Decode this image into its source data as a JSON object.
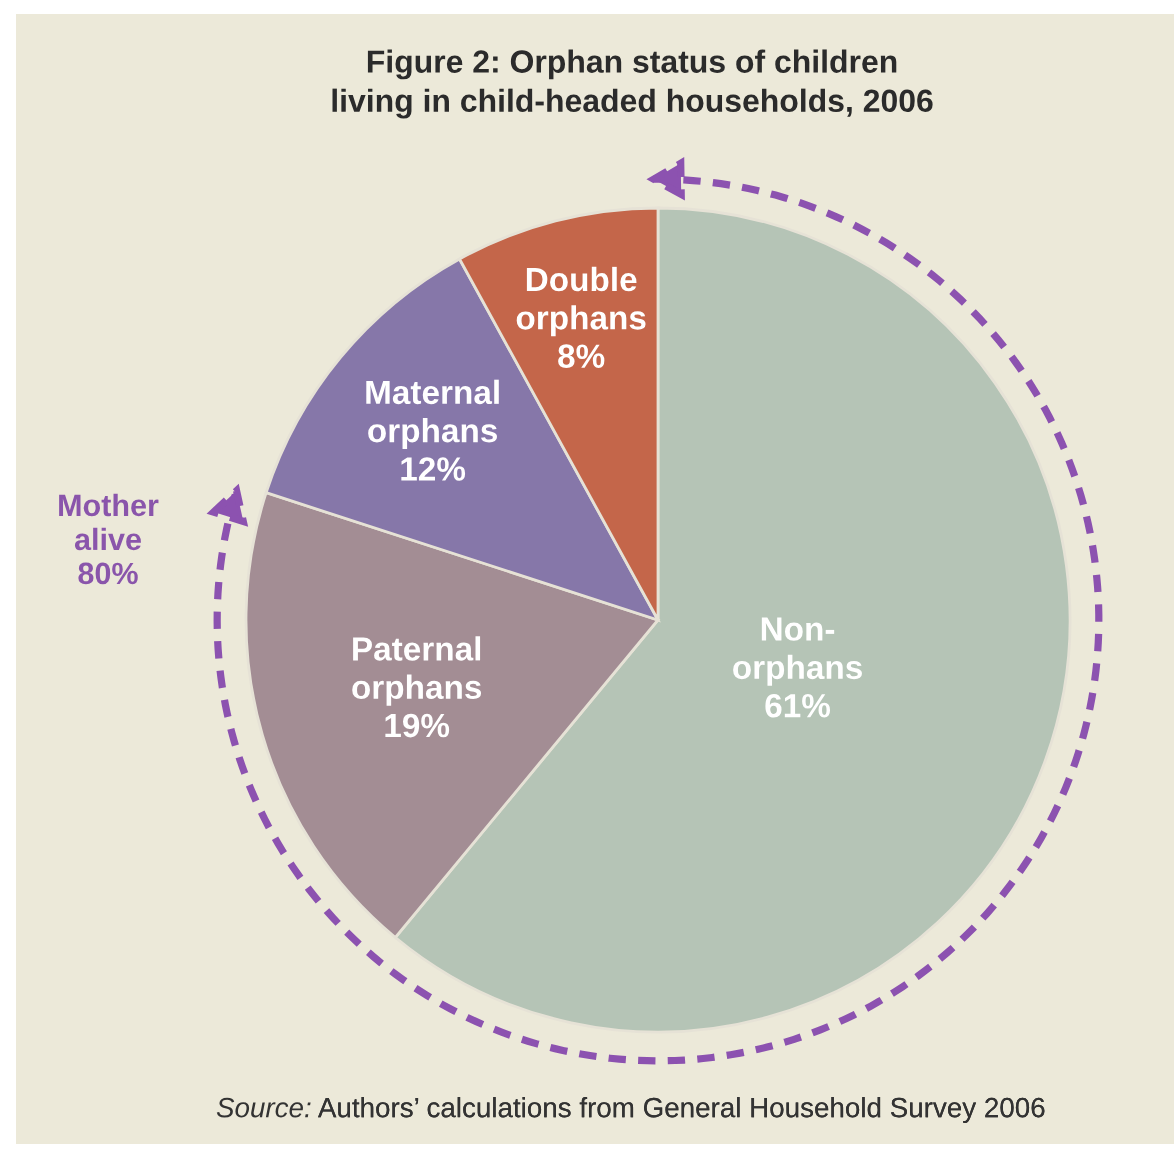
{
  "chart_data": {
    "type": "pie",
    "title": "Figure 2: Orphan status of children\nliving in child-headed households, 2006",
    "categories": [
      "Non-\norphans",
      "Paternal\norphans",
      "Maternal\norphans",
      "Double\norphans"
    ],
    "values": [
      61,
      19,
      12,
      8
    ],
    "colors": [
      "#b5c4b6",
      "#a38d94",
      "#8677a9",
      "#c4664a"
    ],
    "value_labels": [
      "61%",
      "19%",
      "12%",
      "8%"
    ],
    "annotations": [
      "Mother\nalive\n80%",
      "Source: Authors’ calculations from General Household Survey 2006"
    ]
  }
}
